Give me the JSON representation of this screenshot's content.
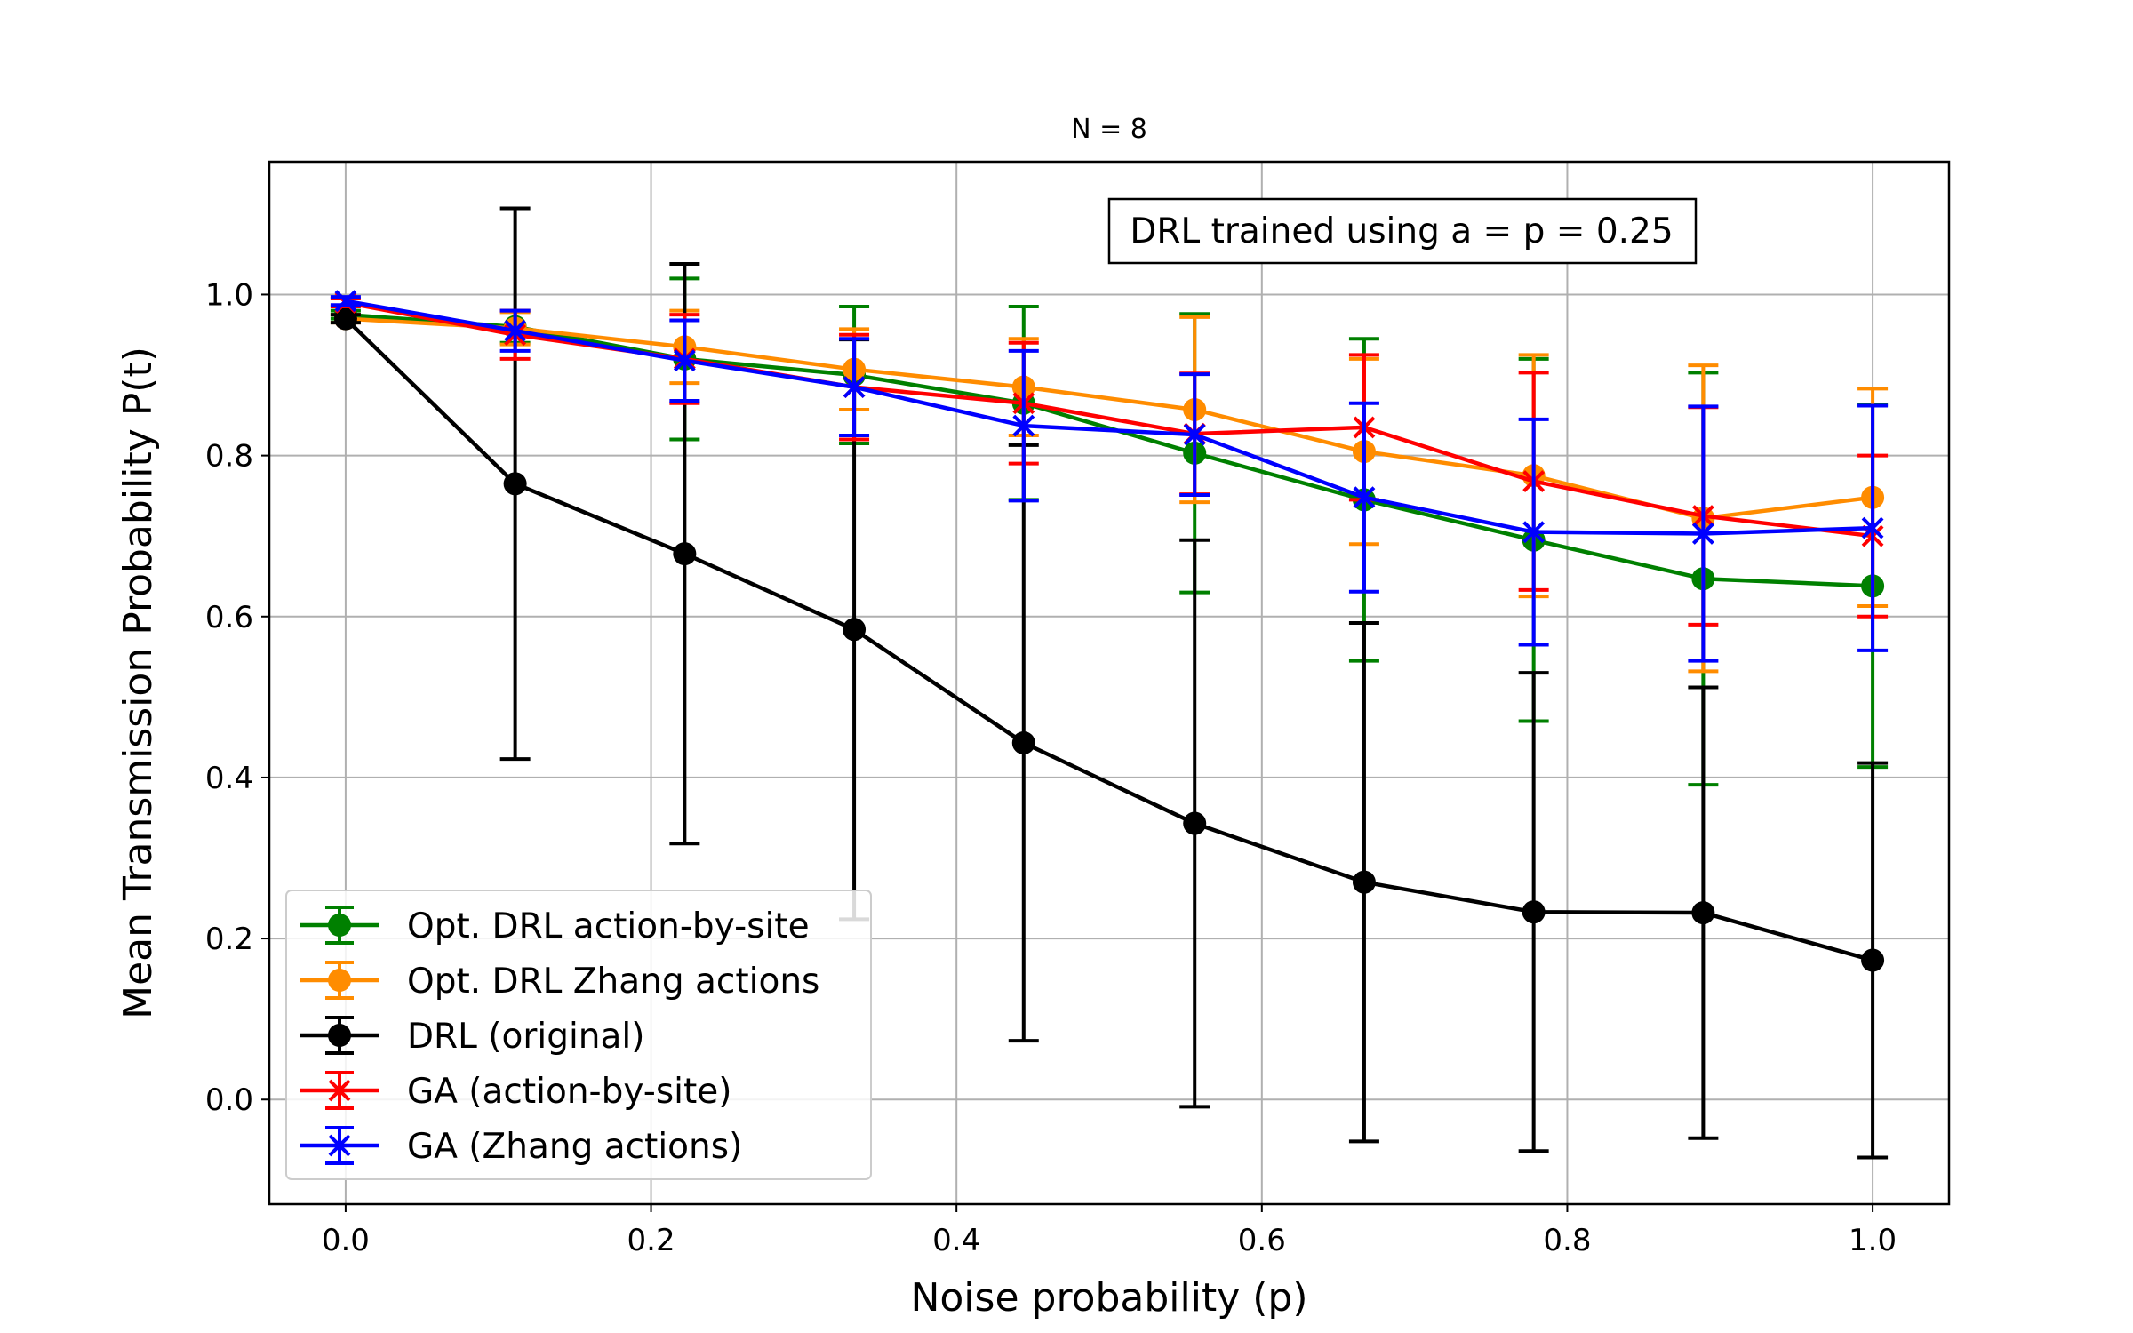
{
  "chart_data": {
    "type": "line",
    "title": "N = 8",
    "xlabel": "Noise probability (p)",
    "ylabel": "Mean Transmission Probability P(t)",
    "xlim": [
      -0.05,
      1.05
    ],
    "ylim": [
      -0.13,
      1.165
    ],
    "xticks": [
      0.0,
      0.2,
      0.4,
      0.6,
      0.8,
      1.0
    ],
    "yticks": [
      0.0,
      0.2,
      0.4,
      0.6,
      0.8,
      1.0
    ],
    "xtick_labels": [
      "0.0",
      "0.2",
      "0.4",
      "0.6",
      "0.8",
      "1.0"
    ],
    "ytick_labels": [
      "0.0",
      "0.2",
      "0.4",
      "0.6",
      "0.8",
      "1.0"
    ],
    "grid": true,
    "legend_position": "lower-left",
    "annotation": "DRL trained using a = p = 0.25",
    "x": [
      0.0,
      0.111,
      0.222,
      0.333,
      0.444,
      0.556,
      0.667,
      0.778,
      0.889,
      1.0
    ],
    "series": [
      {
        "name": "Opt. DRL action-by-site",
        "color": "#008000",
        "marker": "circle",
        "values": [
          0.975,
          0.96,
          0.92,
          0.9,
          0.865,
          0.803,
          0.745,
          0.695,
          0.647,
          0.638
        ],
        "errors": [
          0.005,
          0.02,
          0.1,
          0.085,
          0.12,
          0.173,
          0.2,
          0.225,
          0.256,
          0.225
        ]
      },
      {
        "name": "Opt. DRL Zhang actions",
        "color": "#ff8c00",
        "marker": "circle",
        "values": [
          0.97,
          0.958,
          0.935,
          0.907,
          0.885,
          0.857,
          0.805,
          0.775,
          0.722,
          0.748
        ],
        "errors": [
          0.005,
          0.02,
          0.045,
          0.05,
          0.06,
          0.115,
          0.115,
          0.15,
          0.19,
          0.135
        ]
      },
      {
        "name": "DRL (original)",
        "color": "#000000",
        "marker": "circle",
        "values": [
          0.97,
          0.765,
          0.678,
          0.584,
          0.443,
          0.343,
          0.27,
          0.233,
          0.232,
          0.173
        ],
        "errors": [
          0.005,
          0.342,
          0.36,
          0.36,
          0.37,
          0.352,
          0.322,
          0.297,
          0.28,
          0.245
        ]
      },
      {
        "name": "GA (action-by-site)",
        "color": "#ff0000",
        "marker": "x",
        "values": [
          0.99,
          0.95,
          0.92,
          0.885,
          0.865,
          0.827,
          0.835,
          0.768,
          0.725,
          0.7
        ],
        "errors": [
          0.005,
          0.03,
          0.055,
          0.065,
          0.075,
          0.075,
          0.09,
          0.135,
          0.135,
          0.1
        ]
      },
      {
        "name": "GA (Zhang actions)",
        "color": "#0000ff",
        "marker": "x",
        "values": [
          0.992,
          0.955,
          0.918,
          0.885,
          0.837,
          0.826,
          0.748,
          0.705,
          0.703,
          0.71
        ],
        "errors": [
          0.005,
          0.025,
          0.05,
          0.06,
          0.093,
          0.075,
          0.117,
          0.14,
          0.158,
          0.152
        ]
      }
    ]
  }
}
